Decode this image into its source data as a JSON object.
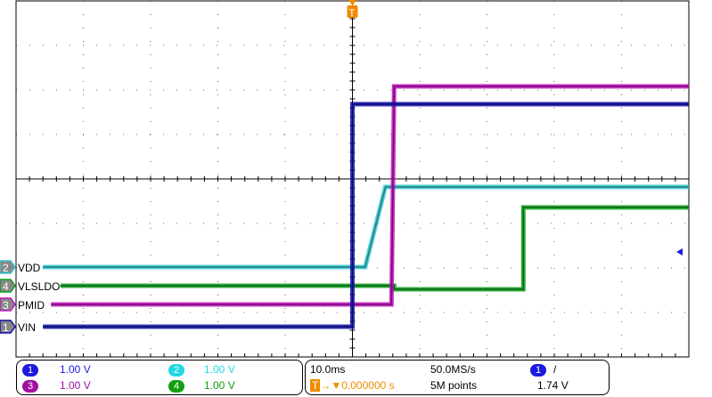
{
  "chart_data": {
    "type": "line",
    "xlabel": "",
    "ylabel": "",
    "x_unit": "ms",
    "y_unit": "divisions",
    "xlim": [
      -50,
      50
    ],
    "ylim": [
      -4,
      4
    ],
    "grid": true,
    "series": [
      {
        "name": "VDD",
        "channel": "2",
        "color": "#2fc8cf",
        "points": [
          [
            -46,
            -1.98
          ],
          [
            1.9,
            -1.98
          ],
          [
            4.9,
            -0.18
          ],
          [
            50,
            -0.18
          ]
        ]
      },
      {
        "name": "VLSLDO",
        "channel": "4",
        "color": "#0aa01a",
        "points": [
          [
            -43.4,
            -2.4
          ],
          [
            6.2,
            -2.4
          ],
          [
            6.2,
            -2.48
          ],
          [
            25.4,
            -2.48
          ],
          [
            25.4,
            -0.64
          ],
          [
            50,
            -0.64
          ]
        ]
      },
      {
        "name": "PMID",
        "channel": "3",
        "color": "#c010c0",
        "points": [
          [
            -44.8,
            -2.82
          ],
          [
            5.8,
            -2.82
          ],
          [
            6.2,
            2.08
          ],
          [
            50,
            2.08
          ]
        ]
      },
      {
        "name": "VIN",
        "channel": "1",
        "color": "#1010b0",
        "points": [
          [
            -46,
            -3.32
          ],
          [
            0,
            -3.32
          ],
          [
            0,
            1.68
          ],
          [
            50,
            1.68
          ]
        ]
      }
    ]
  },
  "channels": [
    {
      "num": "1",
      "scale": "1.00 V",
      "color": "#1a1ae0"
    },
    {
      "num": "2",
      "scale": "1.00 V",
      "color": "#20d8e0"
    },
    {
      "num": "3",
      "scale": "1.00 V",
      "color": "#a010a0"
    },
    {
      "num": "4",
      "scale": "1.00 V",
      "color": "#10a010"
    }
  ],
  "timebase": {
    "scale": "10.0ms",
    "sample_rate": "50.0MS/s",
    "trigger_pos": "0.000000 s",
    "record": "5M points"
  },
  "trigger": {
    "source": "1",
    "slope": "/",
    "level": "1.74 V",
    "marker": "T"
  },
  "labels": {
    "vdd": "VDD",
    "vlsldo": "VLSLDO",
    "pmid": "PMID",
    "vin": "VIN"
  }
}
